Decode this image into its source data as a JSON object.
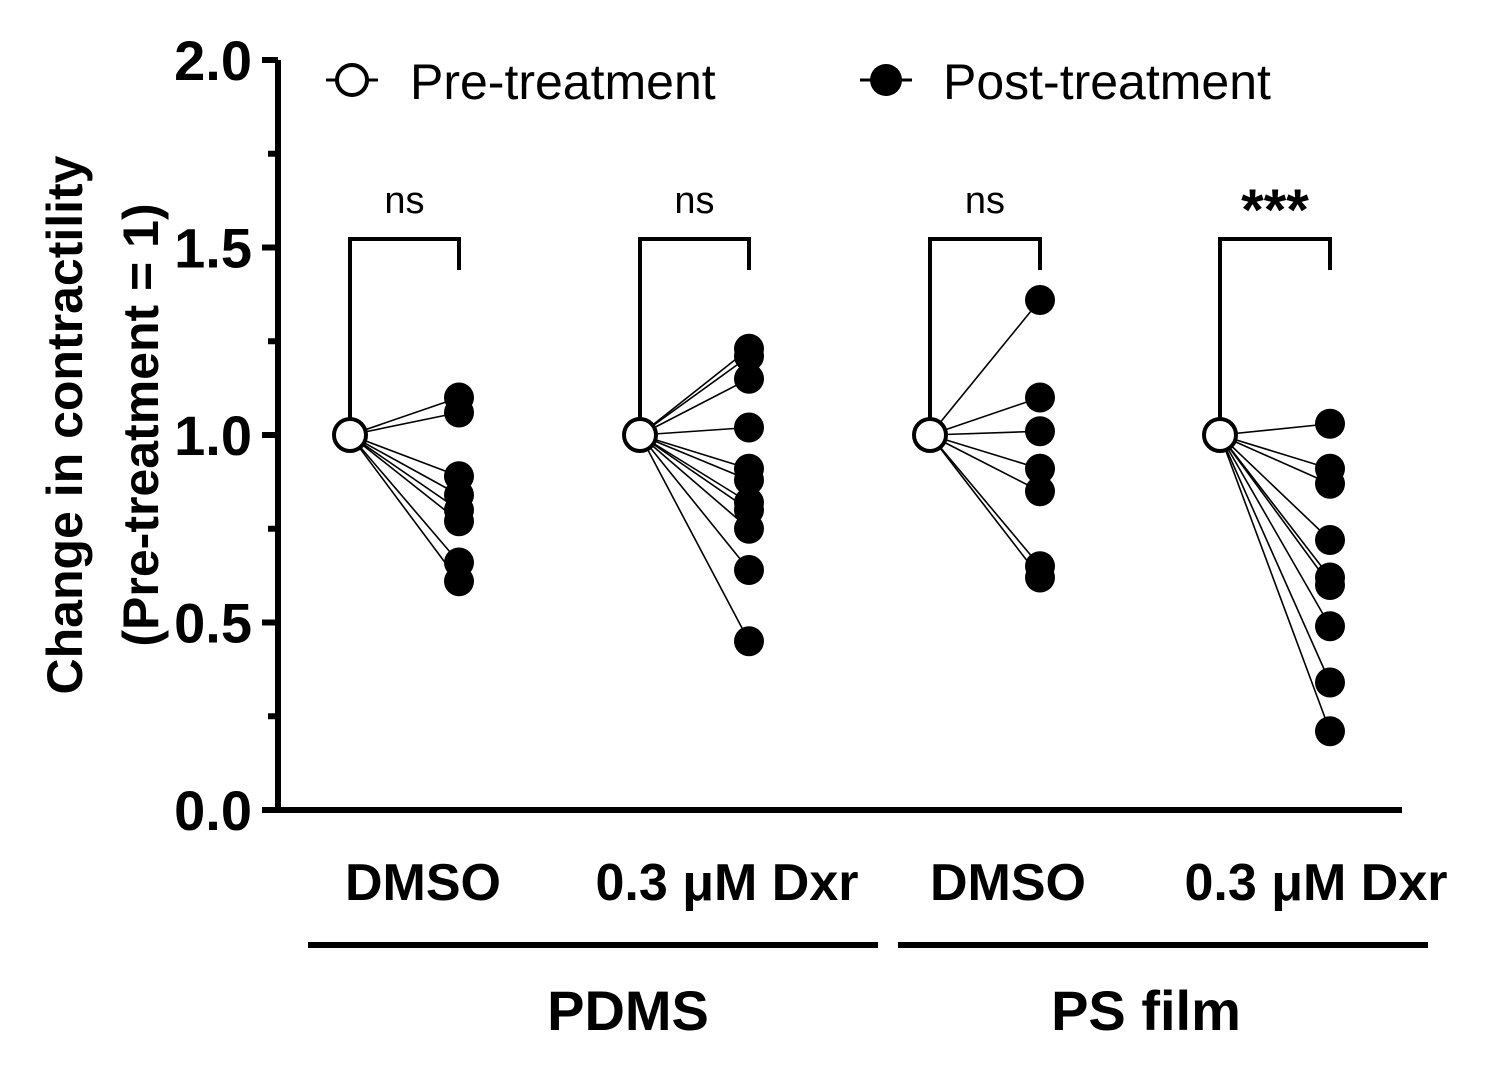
{
  "chart_data": {
    "type": "scatter",
    "title": "",
    "ylabel_line1": "Change in contractility",
    "ylabel_line2": "(Pre-treatment = 1)",
    "ylim": [
      0,
      2.0
    ],
    "yticks": [
      "0.0",
      "0.5",
      "1.0",
      "1.5",
      "2.0"
    ],
    "y_minor_ticks": [
      0.25,
      0.75,
      1.25,
      1.75
    ],
    "grid": false,
    "legend_position": "top",
    "legend": [
      {
        "label": "Pre-treatment",
        "marker": "open-circle"
      },
      {
        "label": "Post-treatment",
        "marker": "filled-circle"
      }
    ],
    "groups": [
      {
        "label": "DMSO",
        "substrate": "PDMS",
        "significance": "ns",
        "pre": 1.0,
        "post": [
          1.1,
          1.06,
          0.89,
          0.84,
          0.8,
          0.77,
          0.66,
          0.61
        ]
      },
      {
        "label": "0.3 μM Dxr",
        "substrate": "PDMS",
        "significance": "ns",
        "pre": 1.0,
        "post": [
          1.23,
          1.21,
          1.15,
          1.02,
          0.91,
          0.88,
          0.82,
          0.8,
          0.75,
          0.64,
          0.45
        ]
      },
      {
        "label": "DMSO",
        "substrate": "PS film",
        "significance": "ns",
        "pre": 1.0,
        "post": [
          1.36,
          1.1,
          1.01,
          0.91,
          0.85,
          0.65,
          0.62
        ]
      },
      {
        "label": "0.3 μM Dxr",
        "substrate": "PS film",
        "significance": "***",
        "pre": 1.0,
        "post": [
          1.03,
          0.91,
          0.87,
          0.72,
          0.62,
          0.6,
          0.49,
          0.34,
          0.21
        ]
      }
    ],
    "substrates": [
      "PDMS",
      "PS film"
    ]
  }
}
